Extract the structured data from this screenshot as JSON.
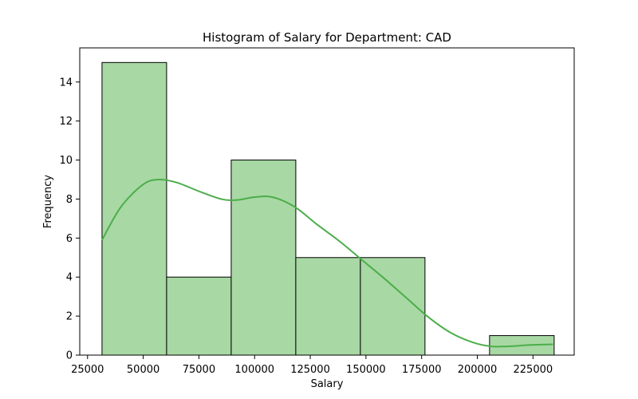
{
  "chart_data": {
    "type": "bar",
    "title": "Histogram of Salary for Department: CAD",
    "xlabel": "Salary",
    "ylabel": "Frequency",
    "xlim": [
      21500,
      243500
    ],
    "ylim": [
      0,
      15.75
    ],
    "x_ticks": [
      25000,
      50000,
      75000,
      100000,
      125000,
      150000,
      175000,
      200000,
      225000
    ],
    "y_ticks": [
      0,
      2,
      4,
      6,
      8,
      10,
      12,
      14
    ],
    "bins": [
      {
        "start": 31500,
        "end": 60500,
        "count": 15
      },
      {
        "start": 60500,
        "end": 89500,
        "count": 4
      },
      {
        "start": 89500,
        "end": 118500,
        "count": 10
      },
      {
        "start": 118500,
        "end": 147500,
        "count": 5
      },
      {
        "start": 147500,
        "end": 176500,
        "count": 5
      },
      {
        "start": 176500,
        "end": 205500,
        "count": 0
      },
      {
        "start": 205500,
        "end": 234500,
        "count": 1
      }
    ],
    "kde": {
      "x": [
        31500,
        40000,
        50000,
        57000,
        65000,
        75000,
        85000,
        92000,
        100000,
        108000,
        118000,
        128000,
        138000,
        148000,
        158000,
        168000,
        178000,
        188000,
        198000,
        206000,
        214000,
        224000,
        234000
      ],
      "y": [
        5.9,
        7.6,
        8.75,
        9.0,
        8.85,
        8.4,
        8.0,
        7.95,
        8.1,
        8.1,
        7.6,
        6.7,
        5.85,
        4.9,
        3.95,
        2.95,
        1.95,
        1.15,
        0.65,
        0.45,
        0.45,
        0.52,
        0.55
      ]
    },
    "colors": {
      "bar_fill": "#a8d8a4",
      "bar_edge": "#000000",
      "kde_line": "#4cae4a"
    },
    "grid": false,
    "legend": "none"
  }
}
